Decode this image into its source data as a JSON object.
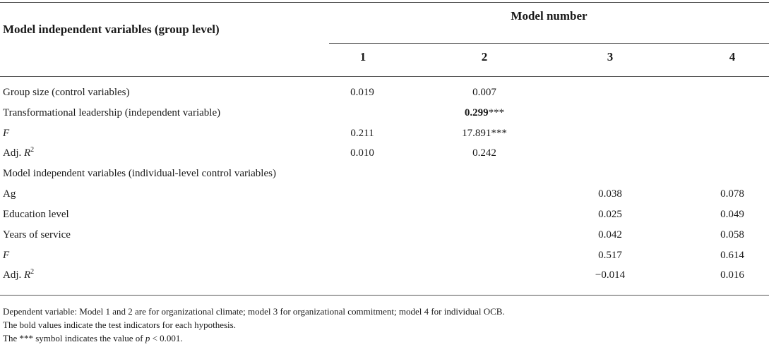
{
  "table": {
    "stub_header": "Model independent variables (group level)",
    "group_header": "Model number",
    "columns": [
      "1",
      "2",
      "3",
      "4"
    ],
    "rows": [
      {
        "label": "Group size (control variables)",
        "c1": "0.019",
        "c2": "0.007",
        "c3": "",
        "c4": ""
      },
      {
        "label": "Transformational leadership (independent variable)",
        "c1": "",
        "c2_bold": "0.299",
        "c2_suffix": "***",
        "c3": "",
        "c4": ""
      },
      {
        "label": "F",
        "c1": "0.211",
        "c2": "17.891***",
        "c3": "",
        "c4": ""
      },
      {
        "label_prefix": "Adj. ",
        "label_italic": "R",
        "label_sup": "2",
        "c1": "0.010",
        "c2": "0.242",
        "c3": "",
        "c4": ""
      },
      {
        "label": "Model independent variables (individual-level control variables)",
        "c1": "",
        "c2": "",
        "c3": "",
        "c4": ""
      },
      {
        "label": "Ag",
        "c1": "",
        "c2": "",
        "c3": "0.038",
        "c4": "0.078"
      },
      {
        "label": "Education level",
        "c1": "",
        "c2": "",
        "c3": "0.025",
        "c4": "0.049"
      },
      {
        "label": "Years of service",
        "c1": "",
        "c2": "",
        "c3": "0.042",
        "c4": "0.058"
      },
      {
        "label": "F",
        "c1": "",
        "c2": "",
        "c3": "0.517",
        "c4": "0.614"
      },
      {
        "label_prefix": "Adj. ",
        "label_italic": "R",
        "label_sup": "2",
        "c1": "",
        "c2": "",
        "c3": "−0.014",
        "c4": "0.016"
      }
    ]
  },
  "footnotes": {
    "line1": "Dependent variable: Model 1 and 2 are for organizational climate; model 3 for organizational commitment; model 4 for individual OCB.",
    "line2": "The bold values indicate the test indicators for each hypothesis.",
    "line3_prefix": "The *** symbol indicates the value of ",
    "line3_p": "p",
    "line3_suffix": " < 0.001."
  }
}
